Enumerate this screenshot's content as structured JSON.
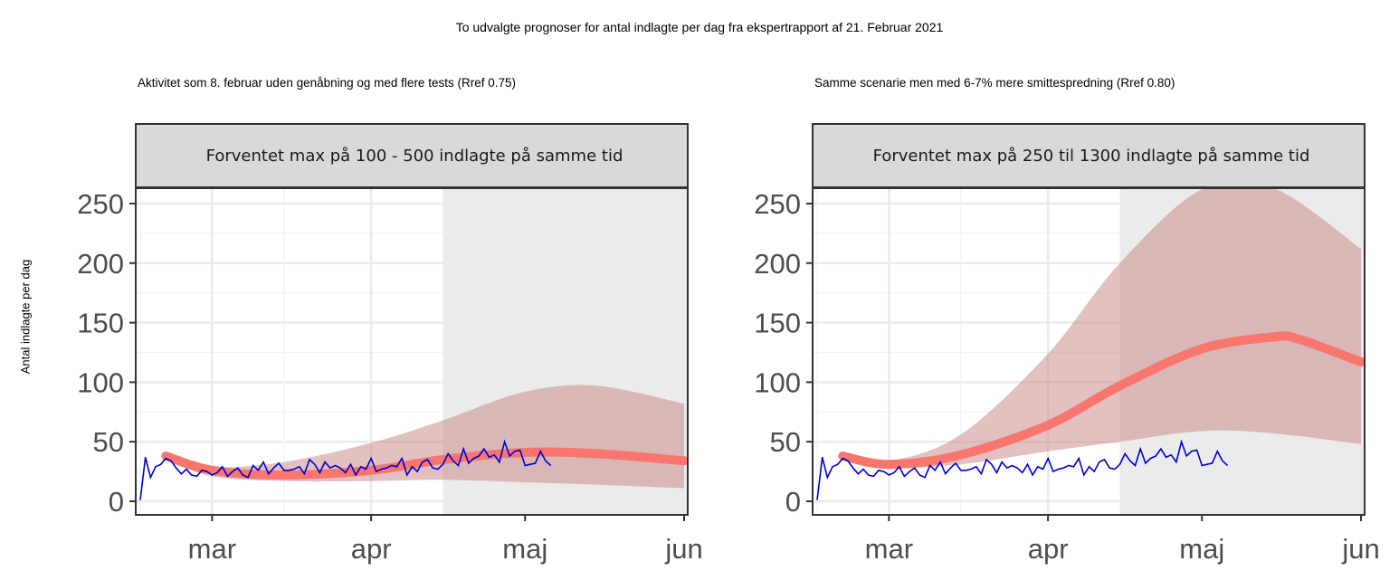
{
  "header": {
    "title": "To udvalgte prognoser for antal indlagte per dag fra ekspertrapport af 21. Februar 2021",
    "ylabel": "Antal indlagte per dag"
  },
  "colors": {
    "observed": "#0000cd",
    "projection": "#f8766d",
    "band": "#c78484",
    "shade": "#ebebeb",
    "grid": "#ebebeb",
    "strip": "#d9d9d9"
  },
  "chart_data": [
    {
      "type": "line",
      "subtitle": "Aktivitet som 8. februar uden genåbning og med flere tests (Rref 0.75)",
      "strip": "Forventet max på 100 - 500 indlagte på samme tid",
      "xlabel": "",
      "ylabel": "Antal indlagte per dag",
      "ylim": [
        0,
        260
      ],
      "yticks": [
        0,
        50,
        100,
        150,
        200,
        250
      ],
      "x_ticks": [
        "mar",
        "apr",
        "maj",
        "jun"
      ],
      "shaded_from": "2021-04-15",
      "grid": true,
      "series": [
        {
          "role": "projection",
          "x": [
            "2021-02-20",
            "2021-03-01",
            "2021-03-15",
            "2021-04-01",
            "2021-04-15",
            "2021-05-01",
            "2021-05-15",
            "2021-06-01"
          ],
          "y": [
            38,
            26,
            22,
            26,
            35,
            41,
            40,
            34
          ]
        },
        {
          "role": "projection_band_upper",
          "x": [
            "2021-02-20",
            "2021-03-01",
            "2021-03-15",
            "2021-04-01",
            "2021-04-15",
            "2021-05-01",
            "2021-05-15",
            "2021-06-01"
          ],
          "y": [
            40,
            29,
            33,
            49,
            68,
            92,
            97,
            82
          ]
        },
        {
          "role": "projection_band_lower",
          "x": [
            "2021-02-20",
            "2021-03-01",
            "2021-03-15",
            "2021-04-01",
            "2021-04-15",
            "2021-05-01",
            "2021-05-15",
            "2021-06-01"
          ],
          "y": [
            36,
            21,
            17,
            17,
            18,
            16,
            14,
            11
          ]
        },
        {
          "role": "observed",
          "x_start": "2021-02-15",
          "y": [
            1,
            37,
            20,
            29,
            31,
            36,
            34,
            28,
            23,
            27,
            22,
            21,
            26,
            25,
            22,
            24,
            29,
            21,
            25,
            28,
            22,
            20,
            30,
            26,
            33,
            23,
            28,
            32,
            26,
            26,
            27,
            29,
            23,
            35,
            31,
            24,
            33,
            28,
            30,
            28,
            24,
            31,
            22,
            29,
            27,
            36,
            25,
            27,
            28,
            30,
            29,
            36,
            22,
            29,
            25,
            33,
            35,
            28,
            27,
            31,
            40,
            34,
            30,
            44,
            32,
            36,
            38,
            44,
            37,
            39,
            33,
            50,
            38,
            42,
            43,
            30,
            31,
            32,
            42,
            34,
            30
          ]
        }
      ]
    },
    {
      "type": "line",
      "subtitle": "Samme scenarie men med 6-7% mere smittespredning (Rref 0.80)",
      "strip": "Forventet max på 250 til 1300 indlagte på samme tid",
      "xlabel": "",
      "ylabel": "",
      "ylim": [
        0,
        260
      ],
      "yticks": [
        0,
        50,
        100,
        150,
        200,
        250
      ],
      "x_ticks": [
        "mar",
        "apr",
        "maj",
        "jun"
      ],
      "shaded_from": "2021-04-15",
      "grid": true,
      "series": [
        {
          "role": "projection",
          "x": [
            "2021-02-20",
            "2021-03-01",
            "2021-03-15",
            "2021-04-01",
            "2021-04-15",
            "2021-05-01",
            "2021-05-15",
            "2021-05-20",
            "2021-06-01"
          ],
          "y": [
            38,
            31,
            39,
            64,
            97,
            128,
            138,
            136,
            117
          ]
        },
        {
          "role": "projection_band_upper",
          "x": [
            "2021-02-20",
            "2021-03-01",
            "2021-03-15",
            "2021-04-01",
            "2021-04-15",
            "2021-05-01",
            "2021-05-15",
            "2021-06-01"
          ],
          "y": [
            40,
            34,
            56,
            124,
            200,
            262,
            270,
            212
          ]
        },
        {
          "role": "projection_band_lower",
          "x": [
            "2021-02-20",
            "2021-03-01",
            "2021-03-15",
            "2021-04-01",
            "2021-04-15",
            "2021-05-01",
            "2021-05-15",
            "2021-06-01"
          ],
          "y": [
            36,
            28,
            31,
            42,
            50,
            59,
            57,
            48
          ]
        },
        {
          "role": "observed",
          "x_start": "2021-02-15",
          "y": [
            1,
            37,
            20,
            29,
            31,
            36,
            34,
            28,
            23,
            27,
            22,
            21,
            26,
            25,
            22,
            24,
            29,
            21,
            25,
            28,
            22,
            20,
            30,
            26,
            33,
            23,
            28,
            32,
            26,
            26,
            27,
            29,
            23,
            35,
            31,
            24,
            33,
            28,
            30,
            28,
            24,
            31,
            22,
            29,
            27,
            36,
            25,
            27,
            28,
            30,
            29,
            36,
            22,
            29,
            25,
            33,
            35,
            28,
            27,
            31,
            40,
            34,
            30,
            44,
            32,
            36,
            38,
            44,
            37,
            39,
            33,
            50,
            38,
            42,
            43,
            30,
            31,
            32,
            42,
            34,
            30
          ]
        }
      ]
    }
  ]
}
